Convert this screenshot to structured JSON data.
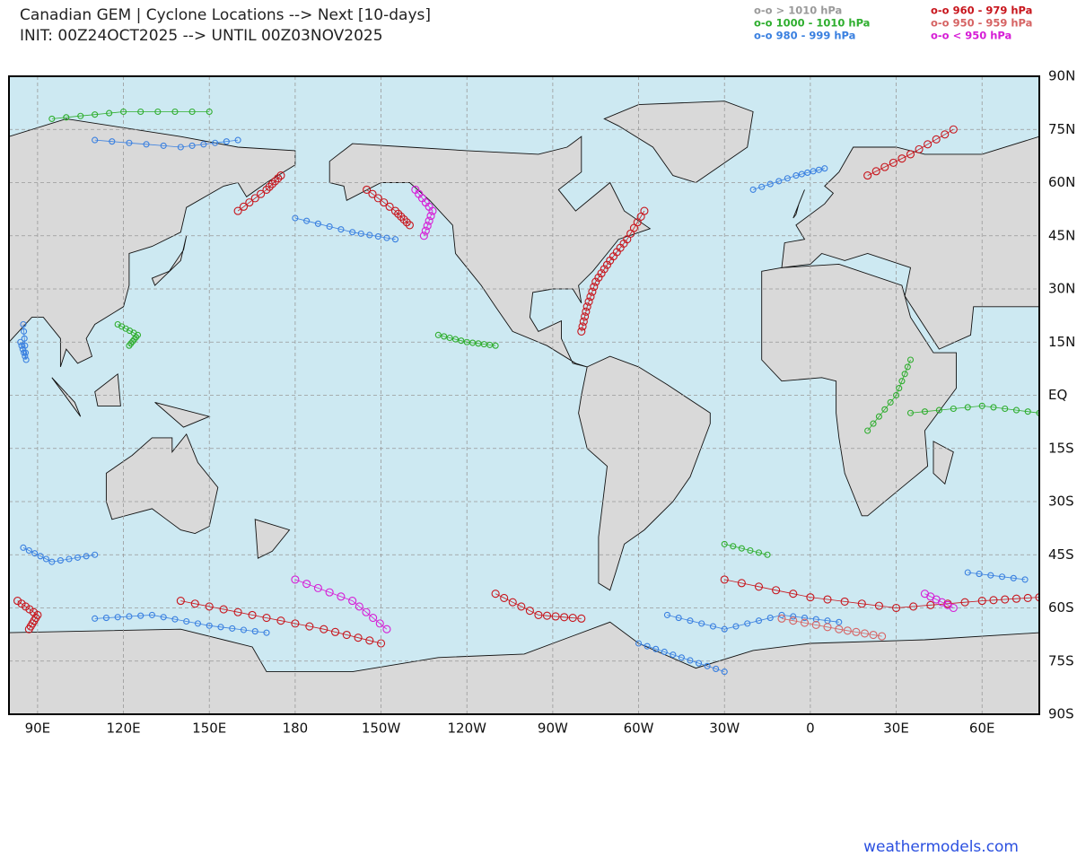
{
  "header": {
    "title_line1": "Canadian GEM | Cyclone Locations --> Next [10-days]",
    "title_line2": "INIT: 00Z24OCT2025 --> UNTIL 00Z03NOV2025"
  },
  "legend": [
    {
      "label": "o-o > 1010 hPa",
      "color": "#9a9a9a"
    },
    {
      "label": "o-o 1000 - 1010 hPa",
      "color": "#2fae2f"
    },
    {
      "label": "o-o 980 - 999 hPa",
      "color": "#3a80e0"
    },
    {
      "label": "o-o 960 - 979 hPa",
      "color": "#c8161d"
    },
    {
      "label": "o-o 950 - 959 hPa",
      "color": "#d66464"
    },
    {
      "label": "o-o < 950 hPa",
      "color": "#d61ed6"
    }
  ],
  "lat_labels": [
    "90N",
    "75N",
    "60N",
    "45N",
    "30N",
    "15N",
    "EQ",
    "15S",
    "30S",
    "45S",
    "60S",
    "75S",
    "90S"
  ],
  "lon_labels": [
    "90E",
    "120E",
    "150E",
    "180",
    "150W",
    "120W",
    "90W",
    "60W",
    "30W",
    "0",
    "30E",
    "60E"
  ],
  "watermark": "weathermodels.com"
}
